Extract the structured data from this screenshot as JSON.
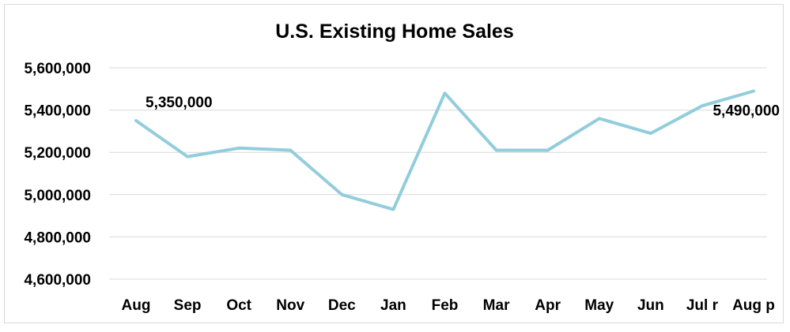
{
  "chart_data": {
    "type": "line",
    "title": "U.S. Existing Home Sales",
    "xlabel": "",
    "ylabel": "",
    "categories": [
      "Aug",
      "Sep",
      "Oct",
      "Nov",
      "Dec",
      "Jan",
      "Feb",
      "Mar",
      "Apr",
      "May",
      "Jun",
      "Jul r",
      "Aug p"
    ],
    "series": [
      {
        "values": [
          5350000,
          5180000,
          5220000,
          5210000,
          5000000,
          4930000,
          5480000,
          5210000,
          5210000,
          5360000,
          5290000,
          5420000,
          5490000
        ],
        "color": "#92cddc"
      }
    ],
    "y_ticks": [
      "4,600,000",
      "4,800,000",
      "5,000,000",
      "5,200,000",
      "5,400,000",
      "5,600,000"
    ],
    "ylim": [
      4600000,
      5600000
    ],
    "grid": true,
    "legend": "none",
    "data_labels": [
      {
        "index": 0,
        "text": "5,350,000"
      },
      {
        "index": 12,
        "text": "5,490,000"
      }
    ]
  }
}
